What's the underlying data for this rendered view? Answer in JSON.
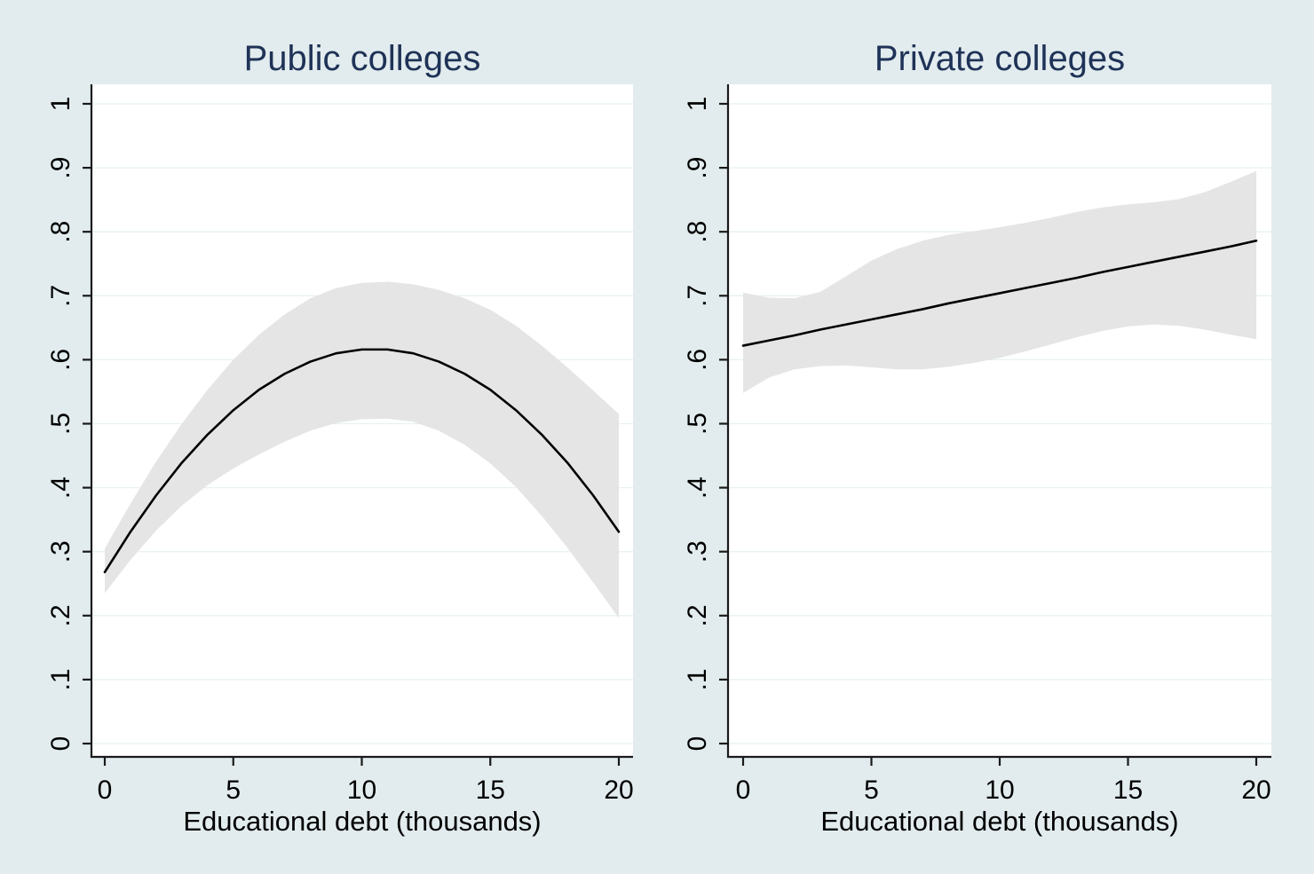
{
  "style": {
    "page_bg": "#e2ecee",
    "plot_bg": "#ffffff",
    "grid_color": "#e8f1f2",
    "band_color": "#e5e5e5",
    "line_color": "#000000",
    "axis_color": "#1a1a1a",
    "title_color": "#1f3257",
    "tick_label_color": "#000000"
  },
  "chart_data": [
    {
      "type": "line",
      "title": "Public colleges",
      "xlabel": "Educational debt (thousands)",
      "ylabel": "",
      "xlim": [
        0,
        20
      ],
      "ylim": [
        0,
        1
      ],
      "x_ticks": [
        0,
        5,
        10,
        15,
        20
      ],
      "x_tick_labels": [
        "0",
        "5",
        "10",
        "15",
        "20"
      ],
      "y_ticks": [
        0,
        0.1,
        0.2,
        0.3,
        0.4,
        0.5,
        0.6,
        0.7,
        0.8,
        0.9,
        1
      ],
      "y_tick_labels": [
        "0",
        ".1",
        ".2",
        ".3",
        ".4",
        ".5",
        ".6",
        ".7",
        ".8",
        ".9",
        "1"
      ],
      "grid": true,
      "legend": "none",
      "x": [
        0,
        1,
        2,
        3,
        4,
        5,
        6,
        7,
        8,
        9,
        10,
        11,
        12,
        13,
        14,
        15,
        16,
        17,
        18,
        19,
        20
      ],
      "series": [
        {
          "name": "fitted",
          "values": [
            0.268,
            0.331,
            0.388,
            0.439,
            0.483,
            0.521,
            0.553,
            0.578,
            0.597,
            0.61,
            0.616,
            0.616,
            0.61,
            0.597,
            0.578,
            0.553,
            0.521,
            0.483,
            0.439,
            0.388,
            0.331
          ]
        },
        {
          "name": "ci_upper",
          "values": [
            0.305,
            0.375,
            0.441,
            0.5,
            0.553,
            0.6,
            0.639,
            0.671,
            0.696,
            0.712,
            0.72,
            0.722,
            0.718,
            0.709,
            0.696,
            0.678,
            0.653,
            0.622,
            0.588,
            0.552,
            0.515
          ]
        },
        {
          "name": "ci_lower",
          "values": [
            0.235,
            0.287,
            0.333,
            0.372,
            0.404,
            0.43,
            0.452,
            0.472,
            0.489,
            0.501,
            0.507,
            0.508,
            0.503,
            0.489,
            0.467,
            0.438,
            0.401,
            0.356,
            0.306,
            0.252,
            0.196
          ]
        }
      ]
    },
    {
      "type": "line",
      "title": "Private colleges",
      "xlabel": "Educational debt (thousands)",
      "ylabel": "",
      "xlim": [
        0,
        20
      ],
      "ylim": [
        0,
        1
      ],
      "x_ticks": [
        0,
        5,
        10,
        15,
        20
      ],
      "x_tick_labels": [
        "0",
        "5",
        "10",
        "15",
        "20"
      ],
      "y_ticks": [
        0,
        0.1,
        0.2,
        0.3,
        0.4,
        0.5,
        0.6,
        0.7,
        0.8,
        0.9,
        1
      ],
      "y_tick_labels": [
        "0",
        ".1",
        ".2",
        ".3",
        ".4",
        ".5",
        ".6",
        ".7",
        ".8",
        ".9",
        "1"
      ],
      "grid": true,
      "legend": "none",
      "x": [
        0,
        1,
        2,
        3,
        4,
        5,
        6,
        7,
        8,
        9,
        10,
        11,
        12,
        13,
        14,
        15,
        16,
        17,
        18,
        19,
        20
      ],
      "series": [
        {
          "name": "fitted",
          "values": [
            0.622,
            0.63,
            0.638,
            0.647,
            0.655,
            0.663,
            0.671,
            0.679,
            0.688,
            0.696,
            0.704,
            0.712,
            0.72,
            0.728,
            0.737,
            0.745,
            0.753,
            0.761,
            0.769,
            0.777,
            0.786
          ]
        },
        {
          "name": "ci_upper",
          "values": [
            0.705,
            0.697,
            0.696,
            0.706,
            0.73,
            0.755,
            0.773,
            0.786,
            0.795,
            0.801,
            0.807,
            0.814,
            0.822,
            0.831,
            0.838,
            0.843,
            0.846,
            0.851,
            0.862,
            0.878,
            0.895
          ]
        },
        {
          "name": "ci_lower",
          "values": [
            0.548,
            0.572,
            0.585,
            0.59,
            0.591,
            0.588,
            0.585,
            0.585,
            0.589,
            0.595,
            0.603,
            0.613,
            0.624,
            0.635,
            0.645,
            0.652,
            0.655,
            0.653,
            0.647,
            0.639,
            0.632
          ]
        }
      ]
    }
  ]
}
